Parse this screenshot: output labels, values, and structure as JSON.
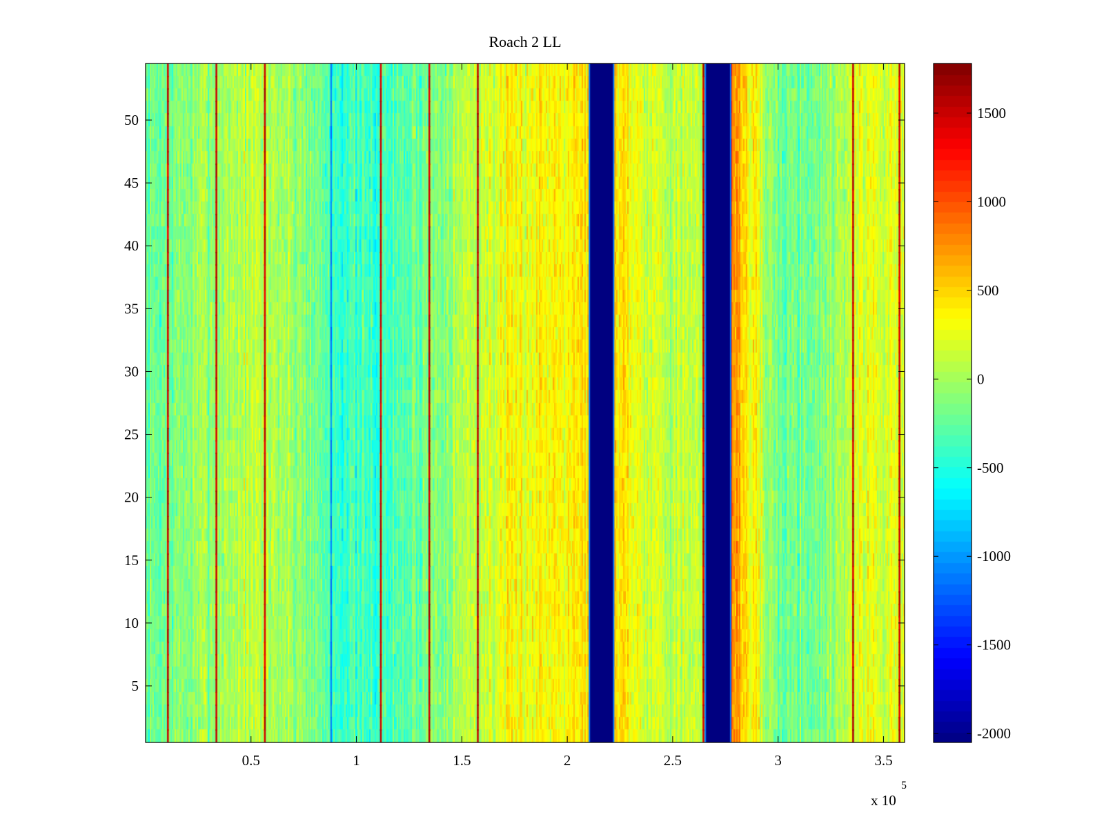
{
  "chart_data": {
    "type": "heatmap",
    "title": "Roach 2 LL",
    "xlabel": "",
    "ylabel": "",
    "x_multiplier_label": "x 10",
    "x_multiplier_exponent": "5",
    "x_range": [
      0,
      360000
    ],
    "y_range": [
      0.5,
      54.5
    ],
    "x_ticks": [
      0.5,
      1,
      1.5,
      2,
      2.5,
      3,
      3.5
    ],
    "x_tick_labels": [
      "0.5",
      "1",
      "1.5",
      "2",
      "2.5",
      "3",
      "3.5"
    ],
    "y_ticks": [
      5,
      10,
      15,
      20,
      25,
      30,
      35,
      40,
      45,
      50
    ],
    "y_tick_labels": [
      "5",
      "10",
      "15",
      "20",
      "25",
      "30",
      "35",
      "40",
      "45",
      "50"
    ],
    "rows": 54,
    "colormap": "jet",
    "clim": [
      -2050,
      1780
    ],
    "colorbar_ticks": [
      1500,
      1000,
      500,
      0,
      -500,
      -1000,
      -1500,
      -2000
    ],
    "colorbar_tick_labels": [
      "1500",
      "1000",
      "500",
      "0",
      "-500",
      "-1000",
      "-1500",
      "-2000"
    ],
    "column_profile": [
      {
        "x": 0,
        "level": -250
      },
      {
        "x": 20000,
        "level": -100
      },
      {
        "x": 45000,
        "level": 80
      },
      {
        "x": 60000,
        "level": 60
      },
      {
        "x": 75000,
        "level": -80
      },
      {
        "x": 90000,
        "level": -350
      },
      {
        "x": 100000,
        "level": -420
      },
      {
        "x": 115000,
        "level": -380
      },
      {
        "x": 130000,
        "level": -200
      },
      {
        "x": 145000,
        "level": 0
      },
      {
        "x": 160000,
        "level": 150
      },
      {
        "x": 180000,
        "level": 320
      },
      {
        "x": 200000,
        "level": 420
      },
      {
        "x": 210000,
        "level": 450
      },
      {
        "x": 222000,
        "level": 550
      },
      {
        "x": 235000,
        "level": 250
      },
      {
        "x": 255000,
        "level": 80
      },
      {
        "x": 265000,
        "level": 50
      },
      {
        "x": 278000,
        "level": 900
      },
      {
        "x": 285000,
        "level": 400
      },
      {
        "x": 300000,
        "level": -200
      },
      {
        "x": 320000,
        "level": -150
      },
      {
        "x": 340000,
        "level": 250
      },
      {
        "x": 360000,
        "level": 200
      }
    ],
    "masked_bands": [
      {
        "x_start": 210500,
        "x_end": 222000,
        "value": -2050
      },
      {
        "x_start": 265500,
        "x_end": 277500,
        "value": -2050
      }
    ],
    "hot_lines_x": [
      10500,
      33500,
      56500,
      111500,
      134500,
      157500,
      264500,
      335500,
      357500
    ],
    "cool_lines_x": [
      88000
    ],
    "noise_amplitude": 520,
    "random_seed": 7
  }
}
